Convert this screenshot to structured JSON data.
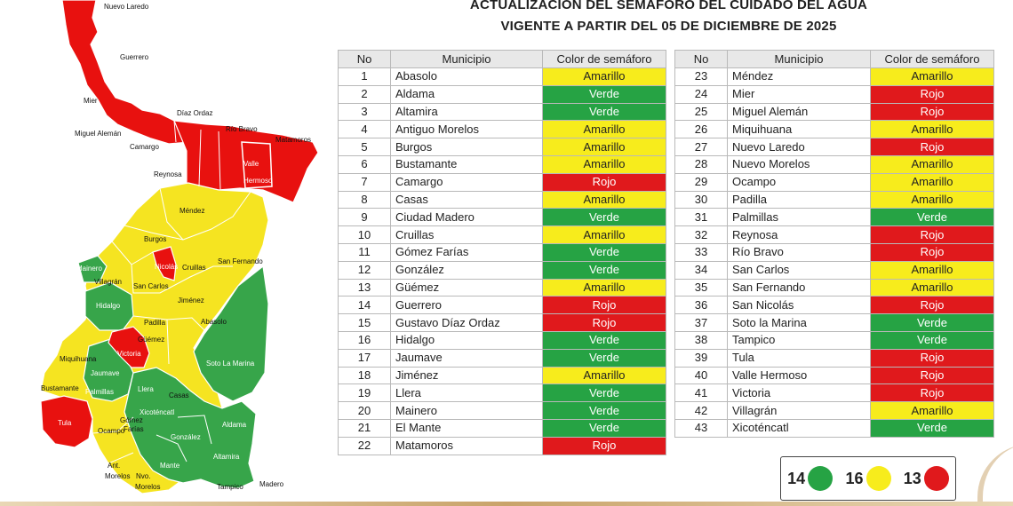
{
  "header": {
    "title_line1": "ACTUALIZACIÓN DEL SEMÁFORO DEL CUIDADO DEL AGUA",
    "title_line2": "VIGENTE A PARTIR DEL 05 DE DICIEMBRE DE 2025"
  },
  "columns": {
    "no": "No",
    "municipio": "Municipio",
    "color": "Color de semáforo"
  },
  "status_colors": {
    "Verde": "#26a344",
    "Amarillo": "#f7ec1c",
    "Rojo": "#e0191c"
  },
  "municipios_left": [
    {
      "no": "1",
      "name": "Abasolo",
      "color": "Amarillo"
    },
    {
      "no": "2",
      "name": "Aldama",
      "color": "Verde"
    },
    {
      "no": "3",
      "name": "Altamira",
      "color": "Verde"
    },
    {
      "no": "4",
      "name": "Antiguo Morelos",
      "color": "Amarillo"
    },
    {
      "no": "5",
      "name": "Burgos",
      "color": "Amarillo"
    },
    {
      "no": "6",
      "name": "Bustamante",
      "color": "Amarillo"
    },
    {
      "no": "7",
      "name": "Camargo",
      "color": "Rojo"
    },
    {
      "no": "8",
      "name": "Casas",
      "color": "Amarillo"
    },
    {
      "no": "9",
      "name": "Ciudad Madero",
      "color": "Verde"
    },
    {
      "no": "10",
      "name": "Cruillas",
      "color": "Amarillo"
    },
    {
      "no": "11",
      "name": "Gómez Farías",
      "color": "Verde"
    },
    {
      "no": "12",
      "name": "González",
      "color": "Verde"
    },
    {
      "no": "13",
      "name": "Güémez",
      "color": "Amarillo"
    },
    {
      "no": "14",
      "name": "Guerrero",
      "color": "Rojo"
    },
    {
      "no": "15",
      "name": "Gustavo Díaz Ordaz",
      "color": "Rojo"
    },
    {
      "no": "16",
      "name": "Hidalgo",
      "color": "Verde"
    },
    {
      "no": "17",
      "name": "Jaumave",
      "color": "Verde"
    },
    {
      "no": "18",
      "name": "Jiménez",
      "color": "Amarillo"
    },
    {
      "no": "19",
      "name": "Llera",
      "color": "Verde"
    },
    {
      "no": "20",
      "name": "Mainero",
      "color": "Verde"
    },
    {
      "no": "21",
      "name": "El Mante",
      "color": "Verde"
    },
    {
      "no": "22",
      "name": "Matamoros",
      "color": "Rojo"
    }
  ],
  "municipios_right": [
    {
      "no": "23",
      "name": "Méndez",
      "color": "Amarillo"
    },
    {
      "no": "24",
      "name": "Mier",
      "color": "Rojo"
    },
    {
      "no": "25",
      "name": "Miguel Alemán",
      "color": "Rojo"
    },
    {
      "no": "26",
      "name": "Miquihuana",
      "color": "Amarillo"
    },
    {
      "no": "27",
      "name": "Nuevo Laredo",
      "color": "Rojo"
    },
    {
      "no": "28",
      "name": "Nuevo Morelos",
      "color": "Amarillo"
    },
    {
      "no": "29",
      "name": "Ocampo",
      "color": "Amarillo"
    },
    {
      "no": "30",
      "name": "Padilla",
      "color": "Amarillo"
    },
    {
      "no": "31",
      "name": "Palmillas",
      "color": "Verde"
    },
    {
      "no": "32",
      "name": "Reynosa",
      "color": "Rojo"
    },
    {
      "no": "33",
      "name": "Río Bravo",
      "color": "Rojo"
    },
    {
      "no": "34",
      "name": "San Carlos",
      "color": "Amarillo"
    },
    {
      "no": "35",
      "name": "San Fernando",
      "color": "Amarillo"
    },
    {
      "no": "36",
      "name": "San Nicolás",
      "color": "Rojo"
    },
    {
      "no": "37",
      "name": "Soto la Marina",
      "color": "Verde"
    },
    {
      "no": "38",
      "name": "Tampico",
      "color": "Verde"
    },
    {
      "no": "39",
      "name": "Tula",
      "color": "Rojo"
    },
    {
      "no": "40",
      "name": "Valle Hermoso",
      "color": "Rojo"
    },
    {
      "no": "41",
      "name": "Victoria",
      "color": "Rojo"
    },
    {
      "no": "42",
      "name": "Villagrán",
      "color": "Amarillo"
    },
    {
      "no": "43",
      "name": "Xicoténcatl",
      "color": "Verde"
    }
  ],
  "summary": [
    {
      "count": "14",
      "color": "#26a344",
      "icon": "green-circle-icon"
    },
    {
      "count": "16",
      "color": "#f7ec1c",
      "icon": "yellow-circle-icon"
    },
    {
      "count": "13",
      "color": "#e0191c",
      "icon": "red-circle-icon"
    }
  ],
  "map_labels": {
    "nuevo_laredo": "Nuevo Laredo",
    "guerrero": "Guerrero",
    "mier": "Mier",
    "miguel_aleman": "Miguel Alemán",
    "diaz_ordaz": "Díaz Ordaz",
    "camargo": "Camargo",
    "rio_bravo": "Río Bravo",
    "matamoros": "Matamoros",
    "reynosa": "Reynosa",
    "valle_hermoso_1": "Valle",
    "valle_hermoso_2": "Hermoso",
    "mendez": "Méndez",
    "burgos": "Burgos",
    "mainero": "Mainero",
    "san_nicolas": "Nicolás",
    "cruillas": "Cruillas",
    "san_fernando": "San Fernando",
    "villagran": "Villagrán",
    "san_carlos": "San Carlos",
    "hidalgo": "Hidalgo",
    "jimenez": "Jiménez",
    "padilla": "Padilla",
    "abasolo": "Abasolo",
    "guemez": "Güémez",
    "miquihuana": "Miquihuana",
    "victoria": "Victoria",
    "jaumave": "Jaumave",
    "soto_la_marina": "Soto La Marina",
    "bustamante": "Bustamante",
    "palmillas": "Palmillas",
    "llera": "Llera",
    "casas": "Casas",
    "tula": "Tula",
    "gomez_farias_1": "Gómez",
    "gomez_farias_2": "Farías",
    "xicotencatl": "Xicoténcatl",
    "ocampo": "Ocampo",
    "aldama": "Aldama",
    "gonzalez": "González",
    "altamira": "Altamira",
    "mante": "Mante",
    "ant_morelos_1": "Ant.",
    "ant_morelos_2": "Morelos",
    "nvo_morelos_1": "Nvo.",
    "nvo_morelos_2": "Morelos",
    "tampico": "Tampico",
    "madero": "Madero"
  }
}
